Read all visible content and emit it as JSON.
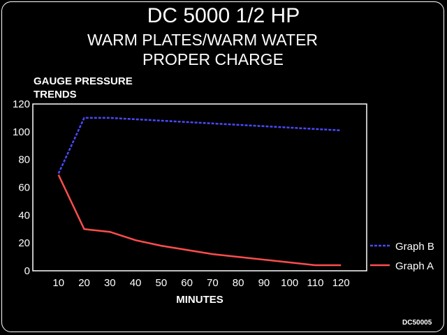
{
  "header": {
    "title": "DC 5000 1/2 HP",
    "subtitle_line1": "WARM PLATES/WARM WATER",
    "subtitle_line2": "PROPER CHARGE"
  },
  "footer_code": "DC50005",
  "chart_data": {
    "type": "line",
    "ylabel_line1": "GAUGE PRESSURE",
    "ylabel_line2": "TRENDS",
    "xlabel": "MINUTES",
    "x": [
      10,
      20,
      30,
      40,
      50,
      60,
      70,
      80,
      90,
      100,
      110,
      120
    ],
    "xlim": [
      0,
      130
    ],
    "ylim": [
      0,
      120
    ],
    "yticks": [
      0,
      20,
      40,
      60,
      80,
      100,
      120
    ],
    "grid": false,
    "legend_position": "right-bottom",
    "series": [
      {
        "name": "Graph B",
        "style": "dashed",
        "color": "#4a4aff",
        "values": [
          70,
          110,
          110,
          109,
          108,
          107,
          106,
          105,
          104,
          103,
          102,
          101
        ]
      },
      {
        "name": "Graph A",
        "style": "solid",
        "color": "#ff4d4d",
        "values": [
          69,
          30,
          28,
          22,
          18,
          15,
          12,
          10,
          8,
          6,
          4,
          4
        ]
      }
    ]
  }
}
